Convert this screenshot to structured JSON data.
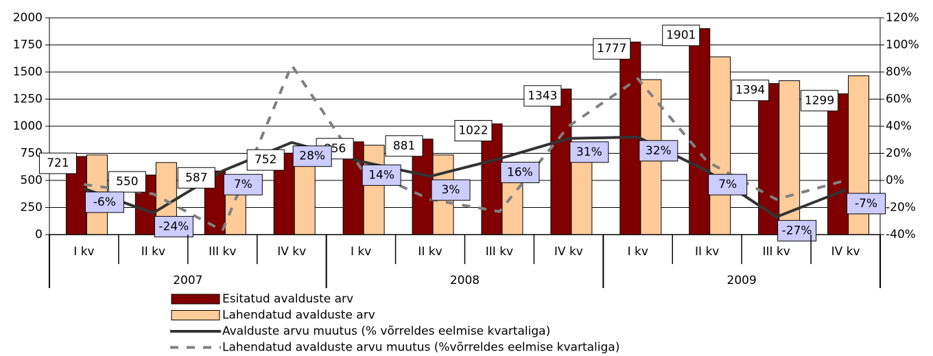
{
  "chart_data": {
    "type": "bar",
    "categories": [
      "I kv",
      "II kv",
      "III kv",
      "IV kv",
      "I kv",
      "II kv",
      "III kv",
      "IV kv",
      "I kv",
      "II kv",
      "III kv",
      "IV kv"
    ],
    "groups": [
      "2007",
      "2008",
      "2009"
    ],
    "series": [
      {
        "name": "Esitatud avalduste arv",
        "color": "#800000",
        "type": "bar",
        "values": [
          721,
          550,
          587,
          752,
          856,
          881,
          1022,
          1343,
          1777,
          1901,
          1394,
          1299
        ]
      },
      {
        "name": "Lahendatud avalduste arv",
        "color": "#ffcc99",
        "type": "bar",
        "values": [
          735,
          665,
          395,
          740,
          825,
          735,
          550,
          815,
          1430,
          1640,
          1420,
          1465
        ]
      },
      {
        "name": "Avalduste arvu muutus (% võrreldes eelmise kvartaliga)",
        "color": "#333333",
        "type": "line",
        "axis": "y2",
        "values": [
          -6,
          -24,
          7,
          28,
          14,
          3,
          16,
          31,
          32,
          7,
          -27,
          -7
        ],
        "value_labels": [
          "-6%",
          "-24%",
          "7%",
          "28%",
          "14%",
          "3%",
          "16%",
          "31%",
          "32%",
          "7%",
          "-27%",
          "-7%"
        ]
      },
      {
        "name": "Lahendatud avalduste arvu muutus (%võrreldes eelmise kvartaliga)",
        "color": "#808080",
        "type": "dashed",
        "axis": "y2",
        "values": [
          -3,
          -10,
          -37,
          85,
          9,
          -14,
          -23,
          40,
          75,
          14,
          -14,
          0
        ]
      }
    ],
    "ylim": [
      0,
      2000
    ],
    "yticks": [
      0,
      250,
      500,
      750,
      1000,
      1250,
      1500,
      1750,
      2000
    ],
    "y2lim": [
      -40,
      120
    ],
    "y2ticks": [
      {
        "value": -40,
        "label": "-40%"
      },
      {
        "value": -20,
        "label": "-20%"
      },
      {
        "value": 0,
        "label": "0%"
      },
      {
        "value": 20,
        "label": "20%"
      },
      {
        "value": 40,
        "label": "40%"
      },
      {
        "value": 60,
        "label": "60%"
      },
      {
        "value": 80,
        "label": "80%"
      },
      {
        "value": 100,
        "label": "100%"
      },
      {
        "value": 120,
        "label": "120%"
      }
    ],
    "grid": true,
    "legend": "bottom"
  }
}
